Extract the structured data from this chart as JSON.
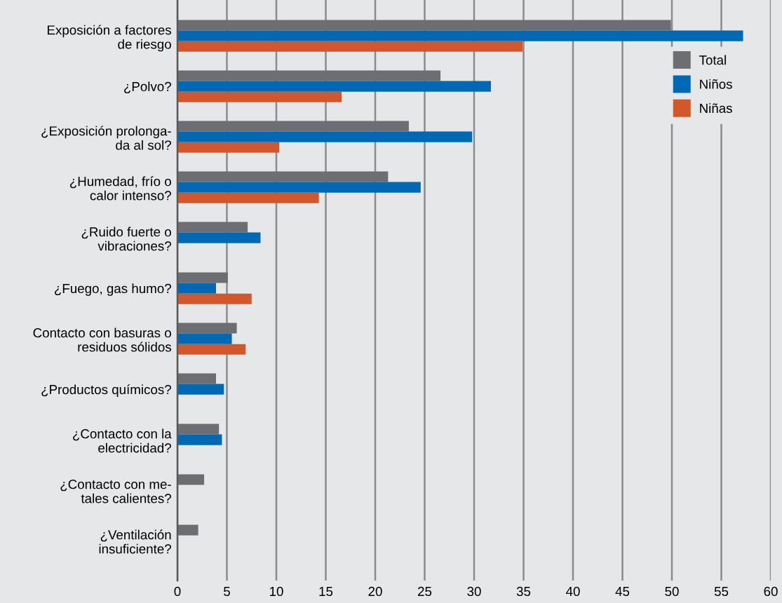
{
  "chart_data": {
    "type": "bar",
    "orientation": "horizontal",
    "categories": [
      "Exposición a factores\nde riesgo",
      "¿Polvo?",
      "¿Exposición prolonga-\nda al sol?",
      "¿Humedad, frío o\ncalor intenso?",
      "¿Ruido fuerte o\nvibraciones?",
      "¿Fuego, gas humo?",
      "Contacto con basuras o\nresiduos sólidos",
      "¿Productos químicos?",
      "¿Contacto con la\nelectricidad?",
      "¿Contacto con me-\ntales calientes?",
      "¿Ventilación\ninsuficiente?"
    ],
    "series": [
      {
        "name": "Total",
        "color": "#6d6e71",
        "values": [
          49.9,
          26.6,
          23.4,
          21.3,
          7.1,
          5.1,
          6.0,
          3.9,
          4.2,
          2.7,
          2.1
        ]
      },
      {
        "name": "Niños",
        "color": "#0068b4",
        "values": [
          57.2,
          31.7,
          29.8,
          24.6,
          8.4,
          3.9,
          5.5,
          4.7,
          4.5,
          null,
          null
        ]
      },
      {
        "name": "Niñas",
        "color": "#d2572b",
        "values": [
          34.9,
          16.6,
          10.3,
          14.3,
          null,
          7.5,
          6.9,
          null,
          null,
          null,
          null
        ]
      }
    ],
    "xlim": [
      0,
      60
    ],
    "xticks": [
      0,
      5,
      10,
      15,
      20,
      25,
      30,
      35,
      40,
      45,
      50,
      55,
      60
    ],
    "grid": "x",
    "legend": "top right"
  }
}
